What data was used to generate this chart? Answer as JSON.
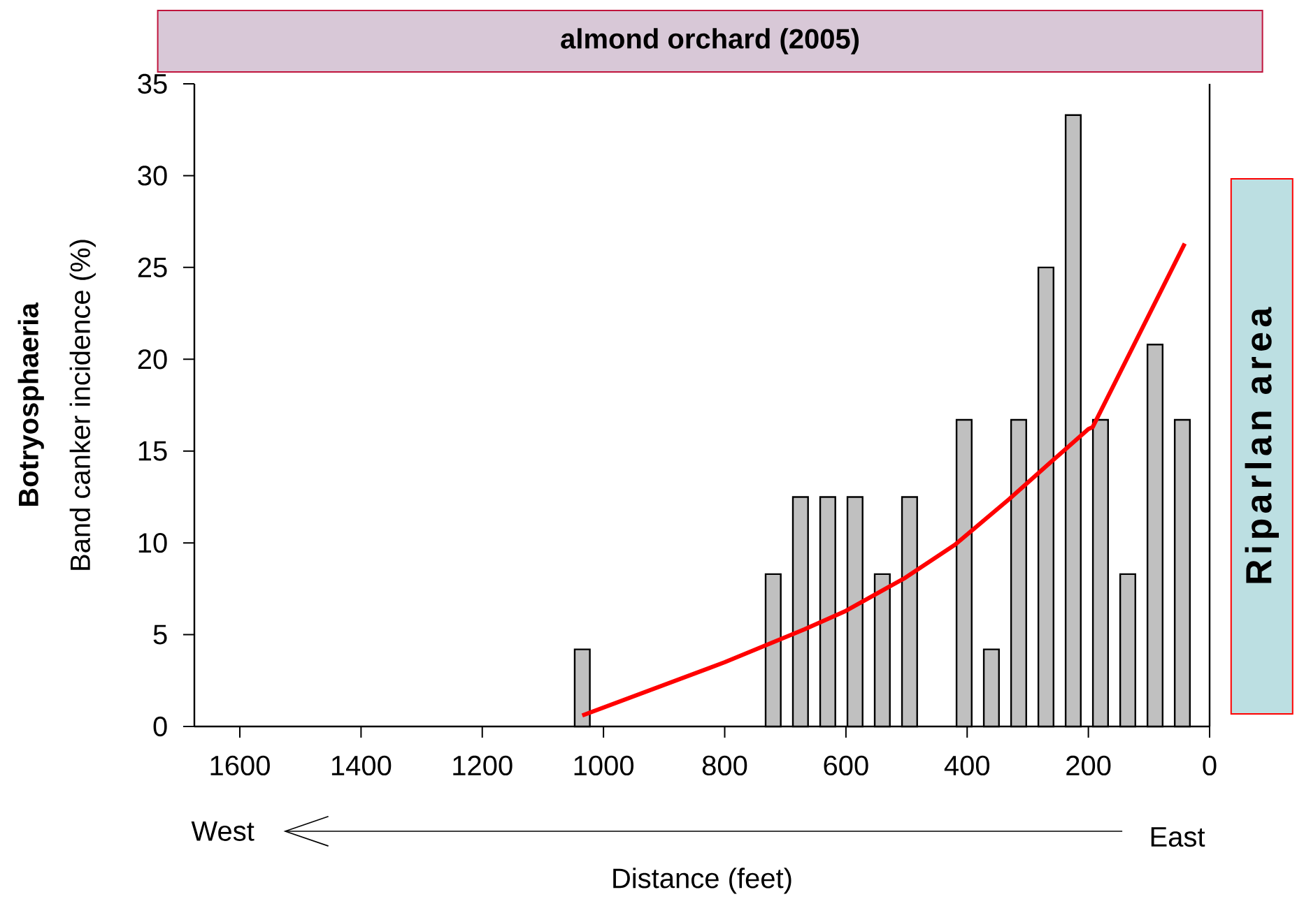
{
  "chart_data": {
    "type": "bar",
    "title": "almond orchard (2005)",
    "xlabel": "Distance (feet)",
    "ylabel": "Band canker incidence (%)",
    "annotations": [
      "Botryosphaeria",
      "West",
      "East",
      "Riparlan area"
    ],
    "xlim": [
      1675,
      0
    ],
    "ylim": [
      0,
      35
    ],
    "xticks": [
      1600,
      1400,
      1200,
      1000,
      800,
      600,
      400,
      200,
      0
    ],
    "yticks": [
      0,
      5,
      10,
      15,
      20,
      25,
      30,
      35
    ],
    "series": [
      {
        "color": "#c0c0c0",
        "x": [
          1035,
          720,
          675,
          630,
          585,
          540,
          495,
          405,
          360,
          315,
          270,
          225,
          180,
          135,
          90,
          45
        ],
        "values": [
          4.2,
          8.3,
          12.5,
          12.5,
          12.5,
          8.3,
          12.5,
          16.7,
          4.2,
          16.7,
          25,
          33.3,
          16.7,
          8.3,
          20.8,
          16.7
        ]
      },
      {
        "type": "line",
        "color": "#ff0000",
        "x": [
          1035,
          800,
          668,
          600,
          502,
          420,
          330,
          262,
          200,
          193,
          41
        ],
        "values": [
          0.6,
          3.5,
          5.3,
          6.3,
          8.1,
          9.9,
          12.4,
          14.4,
          16.2,
          16.3,
          26.3
        ]
      }
    ]
  }
}
